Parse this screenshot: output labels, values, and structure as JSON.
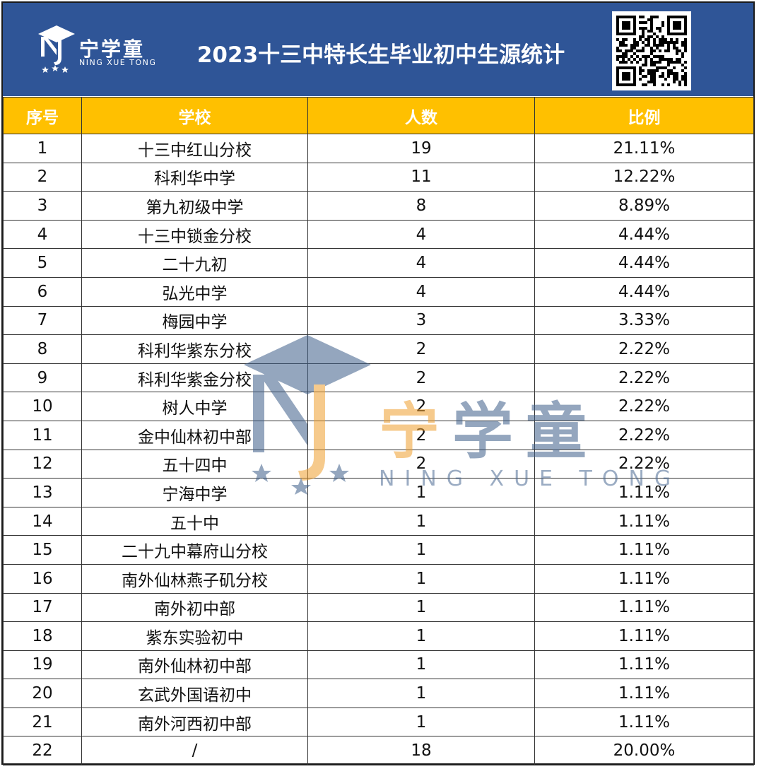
{
  "brand": {
    "name_cn": "宁学童",
    "name_en": "NING XUE TONG",
    "logo_letters": "NJ"
  },
  "title": "2023十三中特长生毕业初中生源统计",
  "table": {
    "headers": [
      "序号",
      "学校",
      "人数",
      "比例"
    ],
    "rows": [
      [
        "1",
        "十三中红山分校",
        "19",
        "21.11%"
      ],
      [
        "2",
        "科利华中学",
        "11",
        "12.22%"
      ],
      [
        "3",
        "第九初级中学",
        "8",
        "8.89%"
      ],
      [
        "4",
        "十三中锁金分校",
        "4",
        "4.44%"
      ],
      [
        "5",
        "二十九初",
        "4",
        "4.44%"
      ],
      [
        "6",
        "弘光中学",
        "4",
        "4.44%"
      ],
      [
        "7",
        "梅园中学",
        "3",
        "3.33%"
      ],
      [
        "8",
        "科利华紫东分校",
        "2",
        "2.22%"
      ],
      [
        "9",
        "科利华紫金分校",
        "2",
        "2.22%"
      ],
      [
        "10",
        "树人中学",
        "2",
        "2.22%"
      ],
      [
        "11",
        "金中仙林初中部",
        "2",
        "2.22%"
      ],
      [
        "12",
        "五十四中",
        "2",
        "2.22%"
      ],
      [
        "13",
        "宁海中学",
        "1",
        "1.11%"
      ],
      [
        "14",
        "五十中",
        "1",
        "1.11%"
      ],
      [
        "15",
        "二十九中幕府山分校",
        "1",
        "1.11%"
      ],
      [
        "16",
        "南外仙林燕子矶分校",
        "1",
        "1.11%"
      ],
      [
        "17",
        "南外初中部",
        "1",
        "1.11%"
      ],
      [
        "18",
        "紫东实验初中",
        "1",
        "1.11%"
      ],
      [
        "19",
        "南外仙林初中部",
        "1",
        "1.11%"
      ],
      [
        "20",
        "玄武外国语初中",
        "1",
        "1.11%"
      ],
      [
        "21",
        "南外河西初中部",
        "1",
        "1.11%"
      ],
      [
        "22",
        "/",
        "18",
        "20.00%"
      ]
    ]
  },
  "colors": {
    "header_bg": "#2f5597",
    "table_header_bg": "#ffc000",
    "watermark_orange": "#f0a030",
    "watermark_blue": "#3e5f8a"
  },
  "icons": [
    "graduation-cap-logo-icon",
    "star-icon",
    "qr-code-icon"
  ]
}
